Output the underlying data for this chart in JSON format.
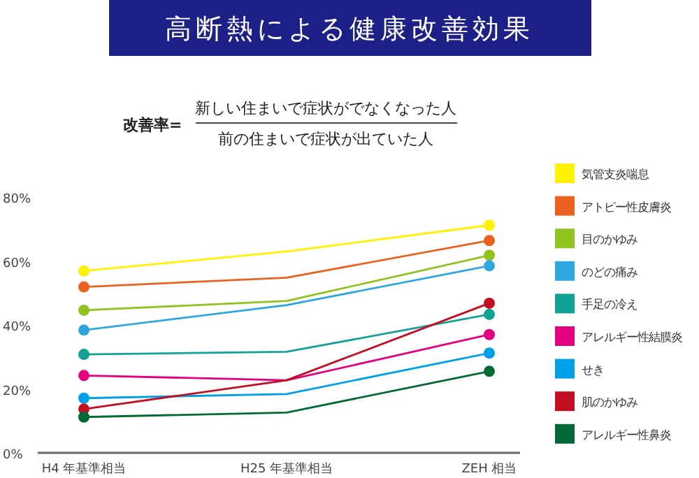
{
  "chart_data": {
    "type": "line",
    "title": "高断熱による健康改善効果",
    "annotations": [
      "改善率=",
      "新しい住まいで症状がでなくなった人",
      "前の住まいで症状が出ていた人"
    ],
    "categories": [
      "H4 年基準相当",
      "H25 年基準相当",
      "ZEH 相当"
    ],
    "ylim": [
      0,
      80
    ],
    "yticks": [
      {
        "value": 0,
        "label": "0%"
      },
      {
        "value": 20,
        "label": "20%"
      },
      {
        "value": 40,
        "label": "40%"
      },
      {
        "value": 60,
        "label": "60%"
      },
      {
        "value": 80,
        "label": "80%"
      }
    ],
    "grid": false,
    "legend": "right",
    "marker": "circle",
    "line_style": "solid",
    "series": [
      {
        "name": "気管支炎喘息",
        "color": "#fff100",
        "values": [
          56.9,
          63,
          71.2
        ]
      },
      {
        "name": "アトピー性皮膚炎",
        "color": "#eb6120",
        "values": [
          51.9,
          54.8,
          66.4
        ]
      },
      {
        "name": "目のかゆみ",
        "color": "#8fc31f",
        "values": [
          44.6,
          47.5,
          61.8
        ]
      },
      {
        "name": "のどの痛み",
        "color": "#2ea7e0",
        "values": [
          38.4,
          46.2,
          58.5
        ]
      },
      {
        "name": "手足の冷え",
        "color": "#12a195",
        "values": [
          30.8,
          31.6,
          43.3
        ]
      },
      {
        "name": "アレルギー性結膜炎",
        "color": "#e4007f",
        "values": [
          24.2,
          22.7,
          37
        ]
      },
      {
        "name": "せき",
        "color": "#00a0e9",
        "values": [
          17.1,
          18.4,
          31.2
        ]
      },
      {
        "name": "肌のかゆみ",
        "color": "#c30d23",
        "values": [
          13.7,
          22.7,
          46.8
        ]
      },
      {
        "name": "アレルギー性鼻炎",
        "color": "#006934",
        "values": [
          11.2,
          12.6,
          25.5
        ]
      }
    ]
  }
}
